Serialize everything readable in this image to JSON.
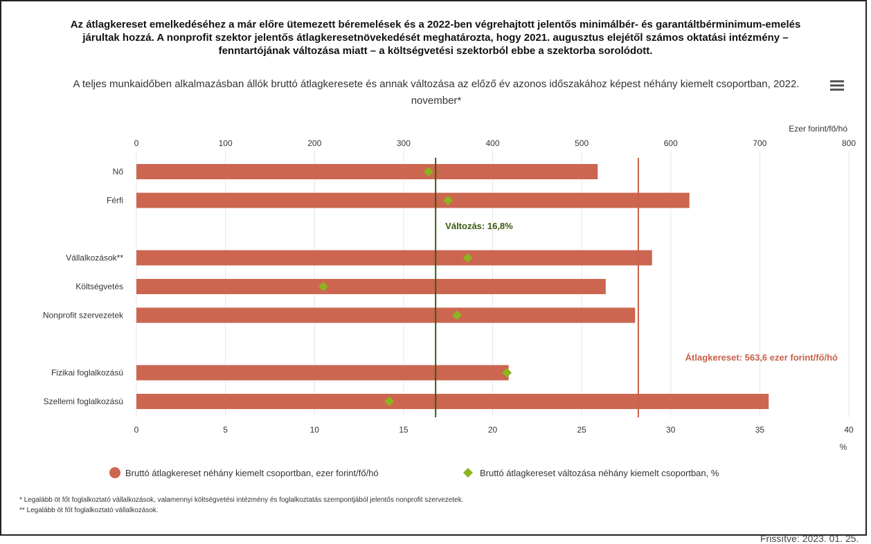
{
  "headline": [
    "Az átlagkereset emelkedéséhez a már előre ütemezett béremelések és a 2022-ben végrehajtott jelentős minimálbér- és garantáltbérminimum-emelés",
    "járultak hozzá. A nonprofit szektor jelentős átlagkeresetnövekedését meghatározta, hogy 2021. augusztus elejétől számos oktatási intézmény –",
    "fenntartójának változása miatt – a költségvetési szektorból ebbe a szektorba sorolódott."
  ],
  "menu_icon": "hamburger-menu-icon",
  "footnotes": [
    "* Legalább öt főt foglalkoztató vállalkozások, valamennyi költségvetési intézmény és foglalkoztatás szempontjából jelentős nonprofit szervezetek.",
    "** Legalább öt főt foglalkoztató vállalkozások."
  ],
  "updated": "Frissítve: 2023. 01. 25.",
  "chart_data": {
    "type": "bar",
    "orientation": "horizontal",
    "title": "A teljes munkaidőben alkalmazásban állók bruttó átlagkeresete és annak változása az előző év azonos időszakához képest néhány kiemelt csoportban, 2022. november*",
    "categories": [
      "Nő",
      "Férfi",
      "",
      "Vállalkozások**",
      "Költségvetés",
      "Nonprofit szervezetek",
      "",
      "Fizikai foglalkozású",
      "Szellemi foglalkozású"
    ],
    "series": [
      {
        "name": "Bruttó átlagkereset néhány kiemelt csoportban, ezer forint/fő/hó",
        "type": "bar",
        "axis": "top",
        "color": "#cc6650",
        "values": [
          518,
          621,
          null,
          579,
          527,
          560,
          null,
          418,
          710
        ]
      },
      {
        "name": "Bruttó átlagkereset változása néhány kiemelt csoportban, %",
        "type": "scatter",
        "marker": "diamond",
        "axis": "bottom",
        "color": "#8db31f",
        "values": [
          16.4,
          17.5,
          null,
          18.6,
          10.5,
          18.0,
          null,
          20.8,
          14.2
        ]
      }
    ],
    "top_axis": {
      "label": "Ezer forint/fő/hó",
      "range": [
        0,
        800
      ],
      "ticks": [
        0,
        100,
        200,
        300,
        400,
        500,
        600,
        700,
        800
      ]
    },
    "bottom_axis": {
      "label": "%",
      "range": [
        0,
        40
      ],
      "ticks": [
        0,
        5,
        10,
        15,
        20,
        25,
        30,
        35,
        40
      ]
    },
    "reference_lines": [
      {
        "axis": "bottom",
        "value": 16.8,
        "label": "Változás: 16,8%",
        "color": "#3a5a10"
      },
      {
        "axis": "top",
        "value": 563.6,
        "label": "Átlagkereset: 563,6 ezer forint/fő/hó",
        "color": "#c8604a"
      }
    ],
    "grid": true,
    "legend_position": "bottom"
  }
}
